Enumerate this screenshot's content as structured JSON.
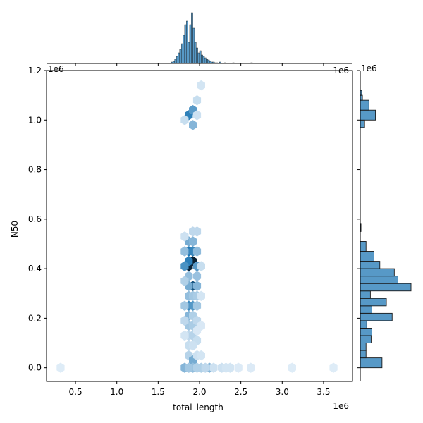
{
  "chart_data": {
    "type": "hexbin-jointplot",
    "xlabel": "total_length",
    "ylabel": "N50",
    "x_offset_text": "1e6",
    "y_offset_text": "1e6",
    "xlim": [
      0.15,
      3.85
    ],
    "ylim": [
      -0.055,
      1.2
    ],
    "xticks": [
      0.5,
      1.0,
      1.5,
      2.0,
      2.5,
      3.0,
      3.5
    ],
    "xtick_labels": [
      "0.5",
      "1.0",
      "1.5",
      "2.0",
      "2.5",
      "3.0",
      "3.5"
    ],
    "yticks": [
      0.0,
      0.2,
      0.4,
      0.6,
      0.8,
      1.0,
      1.2
    ],
    "ytick_labels": [
      "0.0",
      "0.2",
      "0.4",
      "0.6",
      "0.8",
      "1.0",
      "1.2"
    ],
    "color": "#1f77b4",
    "hexbins": [
      {
        "x": 1.92,
        "y": 0.43,
        "v": 1.0
      },
      {
        "x": 1.87,
        "y": 0.41,
        "v": 0.98
      },
      {
        "x": 1.92,
        "y": 0.33,
        "v": 0.82
      },
      {
        "x": 1.87,
        "y": 0.47,
        "v": 0.7
      },
      {
        "x": 1.92,
        "y": 0.47,
        "v": 0.62
      },
      {
        "x": 1.87,
        "y": 0.43,
        "v": 0.66
      },
      {
        "x": 1.82,
        "y": 0.41,
        "v": 0.55
      },
      {
        "x": 1.97,
        "y": 0.41,
        "v": 0.5
      },
      {
        "x": 1.87,
        "y": 0.25,
        "v": 0.6
      },
      {
        "x": 1.92,
        "y": 0.25,
        "v": 0.52
      },
      {
        "x": 1.87,
        "y": 1.02,
        "v": 0.65
      },
      {
        "x": 1.92,
        "y": 1.04,
        "v": 0.5
      },
      {
        "x": 1.92,
        "y": 0.98,
        "v": 0.35
      },
      {
        "x": 1.87,
        "y": 0.51,
        "v": 0.4
      },
      {
        "x": 1.92,
        "y": 0.51,
        "v": 0.35
      },
      {
        "x": 1.97,
        "y": 0.47,
        "v": 0.32
      },
      {
        "x": 1.82,
        "y": 0.47,
        "v": 0.3
      },
      {
        "x": 1.87,
        "y": 0.37,
        "v": 0.3
      },
      {
        "x": 1.97,
        "y": 0.37,
        "v": 0.28
      },
      {
        "x": 1.87,
        "y": 0.33,
        "v": 0.4
      },
      {
        "x": 1.97,
        "y": 0.33,
        "v": 0.35
      },
      {
        "x": 1.82,
        "y": 0.35,
        "v": 0.2
      },
      {
        "x": 1.87,
        "y": 0.29,
        "v": 0.3
      },
      {
        "x": 1.92,
        "y": 0.29,
        "v": 0.25
      },
      {
        "x": 1.97,
        "y": 0.29,
        "v": 0.22
      },
      {
        "x": 1.82,
        "y": 0.25,
        "v": 0.25
      },
      {
        "x": 1.97,
        "y": 0.25,
        "v": 0.25
      },
      {
        "x": 1.87,
        "y": 0.21,
        "v": 0.35
      },
      {
        "x": 1.92,
        "y": 0.21,
        "v": 0.2
      },
      {
        "x": 1.87,
        "y": 0.17,
        "v": 0.25
      },
      {
        "x": 1.92,
        "y": 0.17,
        "v": 0.22
      },
      {
        "x": 1.97,
        "y": 0.19,
        "v": 0.15
      },
      {
        "x": 1.82,
        "y": 0.19,
        "v": 0.15
      },
      {
        "x": 1.87,
        "y": 0.13,
        "v": 0.15
      },
      {
        "x": 1.92,
        "y": 0.13,
        "v": 0.18
      },
      {
        "x": 1.97,
        "y": 0.11,
        "v": 0.12
      },
      {
        "x": 1.87,
        "y": 0.09,
        "v": 0.12
      },
      {
        "x": 1.92,
        "y": 0.09,
        "v": 0.1
      },
      {
        "x": 1.87,
        "y": 0.05,
        "v": 0.18
      },
      {
        "x": 1.92,
        "y": 0.03,
        "v": 0.4
      },
      {
        "x": 1.82,
        "y": 0.0,
        "v": 0.35
      },
      {
        "x": 1.92,
        "y": 0.0,
        "v": 0.3
      },
      {
        "x": 1.87,
        "y": 0.0,
        "v": 0.25
      },
      {
        "x": 1.97,
        "y": 0.0,
        "v": 0.2
      },
      {
        "x": 2.02,
        "y": 0.0,
        "v": 0.2
      },
      {
        "x": 2.12,
        "y": 0.0,
        "v": 0.35
      },
      {
        "x": 2.07,
        "y": 0.0,
        "v": 0.15
      },
      {
        "x": 2.17,
        "y": 0.0,
        "v": 0.1
      },
      {
        "x": 2.27,
        "y": 0.0,
        "v": 0.1
      },
      {
        "x": 2.32,
        "y": 0.0,
        "v": 0.08
      },
      {
        "x": 2.37,
        "y": 0.0,
        "v": 0.08
      },
      {
        "x": 2.47,
        "y": 0.0,
        "v": 0.05
      },
      {
        "x": 2.62,
        "y": 0.0,
        "v": 0.05
      },
      {
        "x": 3.12,
        "y": 0.0,
        "v": 0.04
      },
      {
        "x": 3.62,
        "y": 0.0,
        "v": 0.04
      },
      {
        "x": 0.32,
        "y": 0.0,
        "v": 0.04
      },
      {
        "x": 1.97,
        "y": 0.55,
        "v": 0.15
      },
      {
        "x": 1.92,
        "y": 0.55,
        "v": 0.15
      },
      {
        "x": 1.82,
        "y": 0.53,
        "v": 0.1
      },
      {
        "x": 2.02,
        "y": 0.41,
        "v": 0.12
      },
      {
        "x": 2.02,
        "y": 0.29,
        "v": 0.08
      },
      {
        "x": 1.97,
        "y": 0.05,
        "v": 0.1
      },
      {
        "x": 2.02,
        "y": 0.05,
        "v": 0.08
      },
      {
        "x": 1.97,
        "y": 1.08,
        "v": 0.12
      },
      {
        "x": 2.02,
        "y": 1.14,
        "v": 0.08
      },
      {
        "x": 1.82,
        "y": 1.0,
        "v": 0.12
      },
      {
        "x": 1.97,
        "y": 1.02,
        "v": 0.1
      },
      {
        "x": 1.82,
        "y": 0.13,
        "v": 0.08
      },
      {
        "x": 2.02,
        "y": 0.17,
        "v": 0.06
      },
      {
        "x": 1.97,
        "y": 0.15,
        "v": 0.06
      }
    ],
    "top_histogram": {
      "bins": [
        1.66,
        1.68,
        1.7,
        1.72,
        1.74,
        1.76,
        1.78,
        1.8,
        1.82,
        1.84,
        1.86,
        1.88,
        1.9,
        1.92,
        1.94,
        1.96,
        1.98,
        2.0,
        2.02,
        2.04,
        2.06,
        2.08,
        2.1,
        2.12,
        2.14,
        2.16,
        2.18,
        2.2,
        2.24,
        2.3,
        2.4,
        2.62
      ],
      "counts": [
        2,
        3,
        6,
        10,
        15,
        20,
        28,
        40,
        55,
        60,
        30,
        55,
        72,
        50,
        30,
        22,
        15,
        18,
        12,
        10,
        8,
        6,
        5,
        3,
        2,
        2,
        1,
        1,
        2,
        1,
        1,
        1
      ]
    },
    "right_histogram": {
      "bin_edges": [
        0.0,
        0.04,
        0.07,
        0.1,
        0.13,
        0.16,
        0.19,
        0.22,
        0.25,
        0.28,
        0.31,
        0.34,
        0.37,
        0.4,
        0.43,
        0.47,
        0.51,
        0.55,
        0.58,
        0.6,
        0.97,
        1.0,
        1.04,
        1.08,
        1.1,
        1.12
      ],
      "counts": [
        30,
        8,
        8,
        15,
        16,
        9,
        44,
        16,
        36,
        14,
        70,
        52,
        47,
        27,
        19,
        8,
        0,
        1,
        0,
        0,
        6,
        21,
        12,
        3,
        2
      ]
    }
  }
}
